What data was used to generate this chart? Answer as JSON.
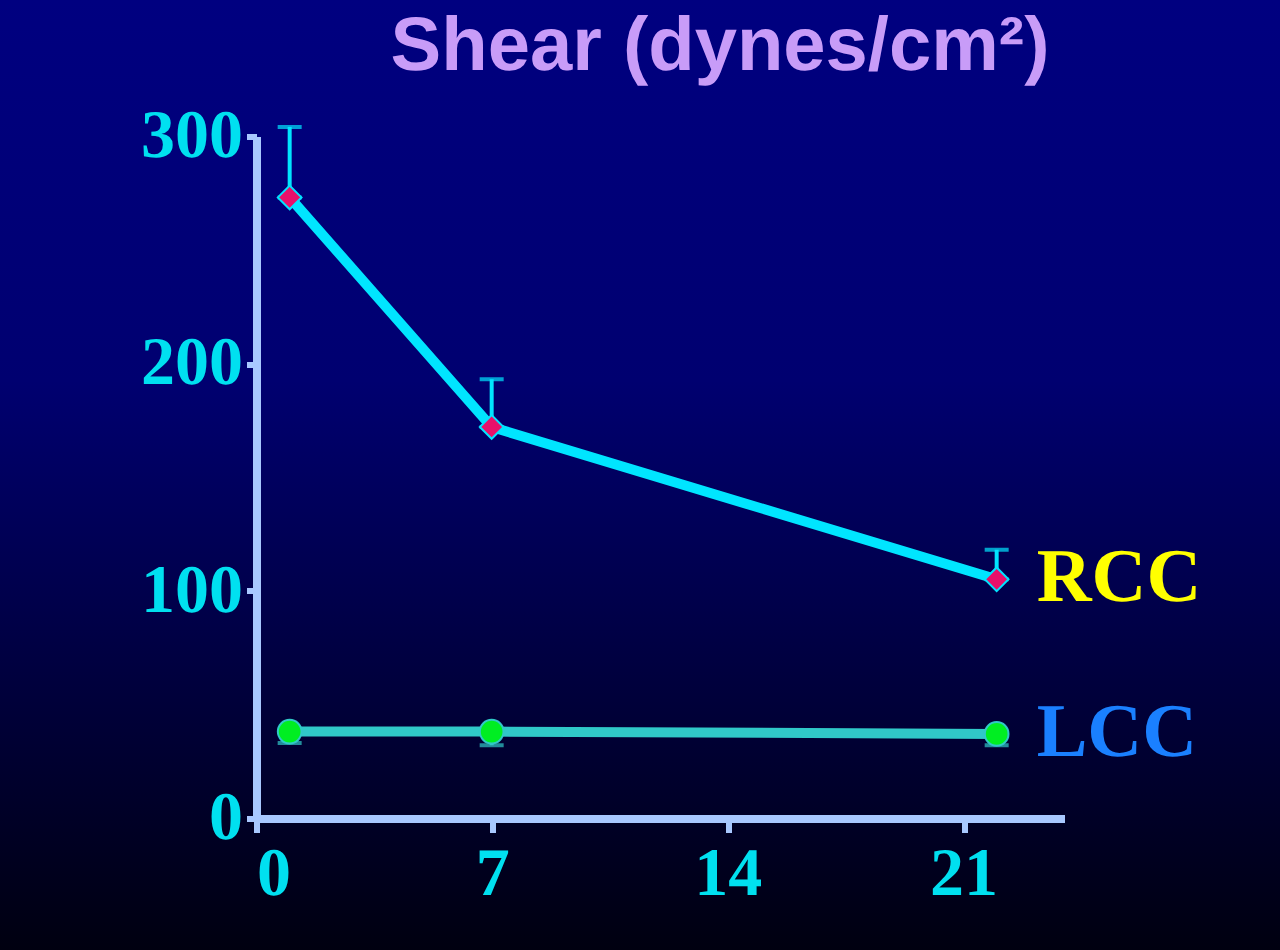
{
  "chart_data": {
    "type": "line",
    "title": "Shear (dynes/cm²)",
    "x": [
      1,
      7,
      22
    ],
    "xlim": [
      0,
      24
    ],
    "xticks": [
      0,
      7,
      14,
      21
    ],
    "ylim": [
      0,
      300
    ],
    "yticks": [
      0,
      100,
      200,
      300
    ],
    "grid": false,
    "series": [
      {
        "name": "RCC",
        "color": "#00e5ff",
        "colors": [
          "#e8106a",
          "#e8106a",
          "#e8106a"
        ],
        "marker": "diamond",
        "values": [
          273,
          172,
          105
        ],
        "errors": [
          [
            273,
            304
          ],
          [
            172,
            193
          ],
          [
            105,
            118
          ]
        ]
      },
      {
        "name": "LCC",
        "color": "#30c8c8",
        "colors": [
          "#00ee22",
          "#00ee22",
          "#00ee22"
        ],
        "marker": "circle",
        "values": [
          38,
          38,
          37
        ],
        "errors": [
          [
            33,
            38
          ],
          [
            32,
            38
          ],
          [
            32,
            37
          ]
        ]
      }
    ]
  }
}
